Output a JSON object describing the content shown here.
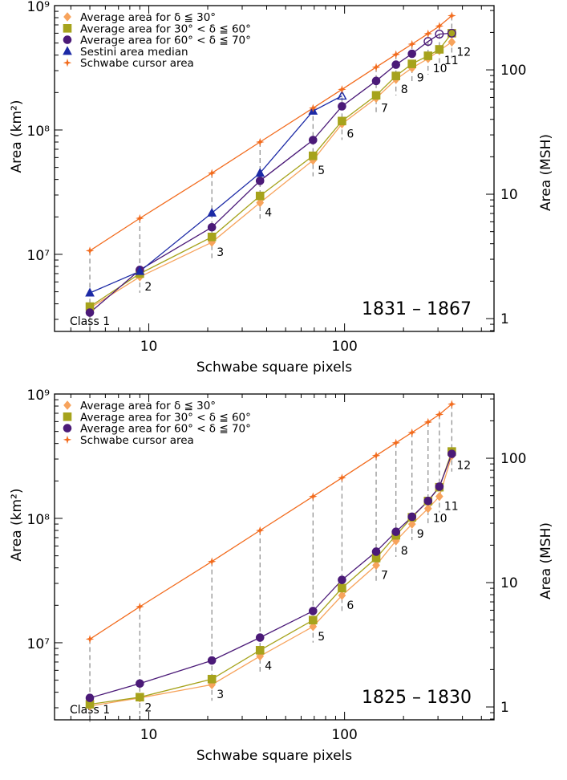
{
  "chart_data": [
    {
      "type": "line",
      "title": "",
      "period_label": "1831 – 1867",
      "xlabel": "Schwabe square pixels",
      "ylabel_left": "Area (km²)",
      "ylabel_right": "Area (MSH)",
      "xscale": "log",
      "yscale": "log",
      "xlim": [
        3.3,
        580
      ],
      "ylim": [
        2400000.0,
        1000000000.0
      ],
      "grid": false,
      "legend_position": "top-left",
      "x_ticks": [
        {
          "value": 10,
          "label": "10"
        },
        {
          "value": 100,
          "label": "100"
        }
      ],
      "y_ticks": [
        {
          "value": 10000000.0,
          "label": "10⁷"
        },
        {
          "value": 100000000.0,
          "label": "10⁸"
        },
        {
          "value": 1000000000.0,
          "label": "10⁹"
        }
      ],
      "right_ticks": [
        {
          "value": 1,
          "label": "1"
        },
        {
          "value": 10,
          "label": "10"
        },
        {
          "value": 100,
          "label": "100"
        }
      ],
      "classes": [
        {
          "label": "Class 1",
          "x": 5
        },
        {
          "label": "2",
          "x": 9
        },
        {
          "label": "3",
          "x": 21
        },
        {
          "label": "4",
          "x": 37
        },
        {
          "label": "5",
          "x": 69
        },
        {
          "label": "6",
          "x": 97
        },
        {
          "label": "7",
          "x": 145
        },
        {
          "label": "8",
          "x": 183
        },
        {
          "label": "9",
          "x": 221
        },
        {
          "label": "10",
          "x": 267
        },
        {
          "label": "11",
          "x": 305
        },
        {
          "label": "12",
          "x": 353
        }
      ],
      "series": [
        {
          "name": "Schwabe cursor area",
          "color": "#f26b1d",
          "marker": "star",
          "x": [
            5,
            9,
            21,
            37,
            69,
            97,
            145,
            183,
            221,
            267,
            305,
            353
          ],
          "values": [
            10700000.0,
            19500000.0,
            45000000.0,
            80000000.0,
            150000000.0,
            212000000.0,
            320000000.0,
            405000000.0,
            490000000.0,
            595000000.0,
            685000000.0,
            830000000.0
          ]
        },
        {
          "name": "Average area for δ ≦ 30°",
          "color": "#f7a35c",
          "marker": "diamond",
          "x": [
            5,
            9,
            21,
            37,
            69,
            97,
            145,
            183,
            221,
            267,
            305,
            353
          ],
          "values": [
            3700000.0,
            6600000.0,
            12500000.0,
            26000000.0,
            57000000.0,
            112000000.0,
            180000000.0,
            255000000.0,
            315000000.0,
            375000000.0,
            435000000.0,
            510000000.0
          ]
        },
        {
          "name": "Average area for 30° < δ ≦ 60°",
          "color": "#a6a31c",
          "marker": "square",
          "x": [
            5,
            9,
            21,
            37,
            69,
            97,
            145,
            183,
            221,
            267,
            305,
            353
          ],
          "values": [
            3800000.0,
            7000000.0,
            13800000.0,
            29500000.0,
            62000000.0,
            118000000.0,
            190000000.0,
            272000000.0,
            340000000.0,
            395000000.0,
            445000000.0,
            600000000.0
          ]
        },
        {
          "name": "Average area for 60° < δ ≦ 70°",
          "color": "#4b1a78",
          "marker": "circle",
          "x": [
            5,
            9,
            21,
            37,
            69,
            97,
            145,
            183,
            221,
            267,
            305,
            353
          ],
          "values": [
            3400000.0,
            7500000.0,
            16500000.0,
            39000000.0,
            83000000.0,
            155000000.0,
            248000000.0,
            335000000.0,
            410000000.0,
            515000000.0,
            590000000.0,
            600000000.0
          ],
          "open_from_index": 9
        },
        {
          "name": "Sestini area median",
          "color": "#1c2aa6",
          "marker": "triangle",
          "x": [
            5,
            9,
            21,
            37,
            69,
            97
          ],
          "values": [
            4900000.0,
            7300000.0,
            21500000.0,
            45000000.0,
            142000000.0,
            188000000.0
          ],
          "open_from_index": 5
        }
      ]
    },
    {
      "type": "line",
      "title": "",
      "period_label": "1825 – 1830",
      "xlabel": "Schwabe square pixels",
      "ylabel_left": "Area (km²)",
      "ylabel_right": "Area (MSH)",
      "xscale": "log",
      "yscale": "log",
      "xlim": [
        3.3,
        580
      ],
      "ylim": [
        2400000.0,
        1000000000.0
      ],
      "grid": false,
      "legend_position": "top-left",
      "x_ticks": [
        {
          "value": 10,
          "label": "10"
        },
        {
          "value": 100,
          "label": "100"
        }
      ],
      "y_ticks": [
        {
          "value": 10000000.0,
          "label": "10⁷"
        },
        {
          "value": 100000000.0,
          "label": "10⁸"
        },
        {
          "value": 1000000000.0,
          "label": "10⁹"
        }
      ],
      "right_ticks": [
        {
          "value": 1,
          "label": "1"
        },
        {
          "value": 10,
          "label": "10"
        },
        {
          "value": 100,
          "label": "100"
        }
      ],
      "classes": [
        {
          "label": "Class 1",
          "x": 5
        },
        {
          "label": "2",
          "x": 9
        },
        {
          "label": "3",
          "x": 21
        },
        {
          "label": "4",
          "x": 37
        },
        {
          "label": "5",
          "x": 69
        },
        {
          "label": "6",
          "x": 97
        },
        {
          "label": "7",
          "x": 145
        },
        {
          "label": "8",
          "x": 183
        },
        {
          "label": "9",
          "x": 221
        },
        {
          "label": "10",
          "x": 267
        },
        {
          "label": "11",
          "x": 305
        },
        {
          "label": "12",
          "x": 353
        }
      ],
      "series": [
        {
          "name": "Schwabe cursor area",
          "color": "#f26b1d",
          "marker": "star",
          "x": [
            5,
            9,
            21,
            37,
            69,
            97,
            145,
            183,
            221,
            267,
            305,
            353
          ],
          "values": [
            10700000.0,
            19500000.0,
            45000000.0,
            80000000.0,
            150000000.0,
            212000000.0,
            320000000.0,
            405000000.0,
            490000000.0,
            595000000.0,
            685000000.0,
            830000000.0
          ]
        },
        {
          "name": "Average area for δ ≦ 30°",
          "color": "#f7a35c",
          "marker": "diamond",
          "x": [
            5,
            9,
            21,
            37,
            69,
            97,
            145,
            183,
            221,
            267,
            305,
            353
          ],
          "values": [
            3100000.0,
            3600000.0,
            4600000.0,
            7800000.0,
            13500000.0,
            24000000.0,
            42000000.0,
            66000000.0,
            90000000.0,
            120000000.0,
            150000000.0,
            320000000.0
          ]
        },
        {
          "name": "Average area for 30° < δ ≦ 60°",
          "color": "#a6a31c",
          "marker": "square",
          "x": [
            5,
            9,
            21,
            37,
            69,
            97,
            145,
            183,
            221,
            267,
            305,
            353
          ],
          "values": [
            3200000.0,
            3650000.0,
            5100000.0,
            8700000.0,
            15200000.0,
            27500000.0,
            48000000.0,
            73000000.0,
            102000000.0,
            138000000.0,
            178000000.0,
            345000000.0
          ]
        },
        {
          "name": "Average area for 60° < δ ≦ 70°",
          "color": "#4b1a78",
          "marker": "circle",
          "x": [
            5,
            9,
            21,
            37,
            69,
            97,
            145,
            183,
            221,
            267,
            305,
            353
          ],
          "values": [
            3600000.0,
            4700000.0,
            7200000.0,
            11000000.0,
            18000000.0,
            32000000.0,
            54000000.0,
            78000000.0,
            103000000.0,
            138000000.0,
            180000000.0,
            330000000.0
          ]
        }
      ]
    }
  ]
}
